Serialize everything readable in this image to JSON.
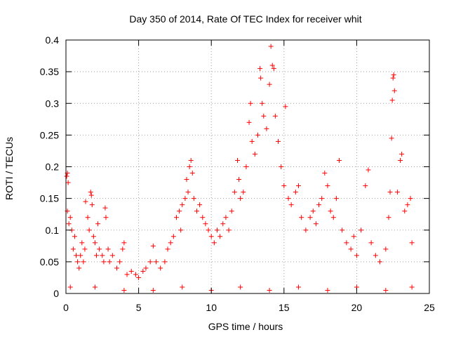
{
  "chart_data": {
    "type": "scatter",
    "title": "Day 350 of 2014, Rate Of TEC Index for receiver whit",
    "xlabel": "GPS time / hours",
    "ylabel": "ROTI / TECUs",
    "xlim": [
      0,
      25
    ],
    "ylim": [
      0,
      0.4
    ],
    "x_ticks": [
      "0",
      "5",
      "10",
      "15",
      "20",
      "25"
    ],
    "y_ticks": [
      "0",
      "0.05",
      "0.1",
      "0.15",
      "0.2",
      "0.25",
      "0.3",
      "0.35",
      "0.4"
    ],
    "grid": true,
    "marker": "+",
    "series": [
      {
        "name": "ROTI",
        "color": "#ff0000",
        "points": [
          [
            0.05,
            0.185
          ],
          [
            0.1,
            0.19
          ],
          [
            0.15,
            0.175
          ],
          [
            0.1,
            0.13
          ],
          [
            0.2,
            0.11
          ],
          [
            0.3,
            0.12
          ],
          [
            0.4,
            0.1
          ],
          [
            0.5,
            0.07
          ],
          [
            0.6,
            0.09
          ],
          [
            0.7,
            0.06
          ],
          [
            0.8,
            0.05
          ],
          [
            0.9,
            0.04
          ],
          [
            1.0,
            0.06
          ],
          [
            1.1,
            0.08
          ],
          [
            1.2,
            0.05
          ],
          [
            1.3,
            0.07
          ],
          [
            1.35,
            0.145
          ],
          [
            1.5,
            0.12
          ],
          [
            1.6,
            0.1
          ],
          [
            1.7,
            0.16
          ],
          [
            1.75,
            0.155
          ],
          [
            1.8,
            0.14
          ],
          [
            1.9,
            0.09
          ],
          [
            2.0,
            0.08
          ],
          [
            2.1,
            0.06
          ],
          [
            2.2,
            0.11
          ],
          [
            2.3,
            0.07
          ],
          [
            2.5,
            0.06
          ],
          [
            2.6,
            0.05
          ],
          [
            2.7,
            0.135
          ],
          [
            2.75,
            0.12
          ],
          [
            2.9,
            0.07
          ],
          [
            3.0,
            0.05
          ],
          [
            3.2,
            0.06
          ],
          [
            3.5,
            0.04
          ],
          [
            3.7,
            0.05
          ],
          [
            3.9,
            0.07
          ],
          [
            4.0,
            0.08
          ],
          [
            4.2,
            0.03
          ],
          [
            4.5,
            0.035
          ],
          [
            4.8,
            0.03
          ],
          [
            5.0,
            0.025
          ],
          [
            5.3,
            0.035
          ],
          [
            5.5,
            0.04
          ],
          [
            5.8,
            0.05
          ],
          [
            6.0,
            0.075
          ],
          [
            6.2,
            0.05
          ],
          [
            6.5,
            0.04
          ],
          [
            6.8,
            0.05
          ],
          [
            7.0,
            0.07
          ],
          [
            7.2,
            0.08
          ],
          [
            7.4,
            0.09
          ],
          [
            7.6,
            0.12
          ],
          [
            7.8,
            0.13
          ],
          [
            7.9,
            0.1
          ],
          [
            8.0,
            0.14
          ],
          [
            8.2,
            0.15
          ],
          [
            8.3,
            0.18
          ],
          [
            8.4,
            0.16
          ],
          [
            8.5,
            0.2
          ],
          [
            8.6,
            0.21
          ],
          [
            8.7,
            0.19
          ],
          [
            8.8,
            0.15
          ],
          [
            9.0,
            0.13
          ],
          [
            9.2,
            0.14
          ],
          [
            9.4,
            0.12
          ],
          [
            9.6,
            0.11
          ],
          [
            9.8,
            0.1
          ],
          [
            10.0,
            0.09
          ],
          [
            10.2,
            0.08
          ],
          [
            10.4,
            0.1
          ],
          [
            10.6,
            0.09
          ],
          [
            10.8,
            0.11
          ],
          [
            11.0,
            0.12
          ],
          [
            11.2,
            0.1
          ],
          [
            11.4,
            0.13
          ],
          [
            11.6,
            0.16
          ],
          [
            11.8,
            0.21
          ],
          [
            11.9,
            0.18
          ],
          [
            12.0,
            0.15
          ],
          [
            12.2,
            0.16
          ],
          [
            12.4,
            0.2
          ],
          [
            12.6,
            0.27
          ],
          [
            12.7,
            0.3
          ],
          [
            12.8,
            0.24
          ],
          [
            13.0,
            0.22
          ],
          [
            13.2,
            0.25
          ],
          [
            13.35,
            0.355
          ],
          [
            13.4,
            0.34
          ],
          [
            13.5,
            0.3
          ],
          [
            13.6,
            0.28
          ],
          [
            13.8,
            0.26
          ],
          [
            14.0,
            0.33
          ],
          [
            14.1,
            0.39
          ],
          [
            14.2,
            0.36
          ],
          [
            14.3,
            0.355
          ],
          [
            14.4,
            0.28
          ],
          [
            14.6,
            0.24
          ],
          [
            14.8,
            0.2
          ],
          [
            15.0,
            0.17
          ],
          [
            15.1,
            0.295
          ],
          [
            15.3,
            0.15
          ],
          [
            15.5,
            0.14
          ],
          [
            15.8,
            0.16
          ],
          [
            16.0,
            0.17
          ],
          [
            16.2,
            0.12
          ],
          [
            16.5,
            0.1
          ],
          [
            16.8,
            0.12
          ],
          [
            17.0,
            0.13
          ],
          [
            17.2,
            0.11
          ],
          [
            17.4,
            0.14
          ],
          [
            17.6,
            0.15
          ],
          [
            17.8,
            0.19
          ],
          [
            18.0,
            0.17
          ],
          [
            18.2,
            0.13
          ],
          [
            18.4,
            0.12
          ],
          [
            18.6,
            0.15
          ],
          [
            18.8,
            0.21
          ],
          [
            19.0,
            0.1
          ],
          [
            19.3,
            0.08
          ],
          [
            19.6,
            0.07
          ],
          [
            19.8,
            0.09
          ],
          [
            20.0,
            0.06
          ],
          [
            20.3,
            0.1
          ],
          [
            20.6,
            0.17
          ],
          [
            20.8,
            0.195
          ],
          [
            21.0,
            0.08
          ],
          [
            21.3,
            0.06
          ],
          [
            21.6,
            0.05
          ],
          [
            22.0,
            0.07
          ],
          [
            22.2,
            0.12
          ],
          [
            22.3,
            0.16
          ],
          [
            22.4,
            0.245
          ],
          [
            22.45,
            0.305
          ],
          [
            22.5,
            0.34
          ],
          [
            22.55,
            0.345
          ],
          [
            22.6,
            0.32
          ],
          [
            22.8,
            0.16
          ],
          [
            23.0,
            0.21
          ],
          [
            23.1,
            0.22
          ],
          [
            23.3,
            0.13
          ],
          [
            23.5,
            0.14
          ],
          [
            23.7,
            0.15
          ],
          [
            23.8,
            0.08
          ],
          [
            0.3,
            0.01
          ],
          [
            2.0,
            0.01
          ],
          [
            4.0,
            0.005
          ],
          [
            6.0,
            0.005
          ],
          [
            8.0,
            0.01
          ],
          [
            10.0,
            0.005
          ],
          [
            12.0,
            0.01
          ],
          [
            14.0,
            0.005
          ],
          [
            16.0,
            0.01
          ],
          [
            18.0,
            0.005
          ],
          [
            20.0,
            0.01
          ],
          [
            22.0,
            0.005
          ],
          [
            23.8,
            0.01
          ]
        ]
      }
    ]
  }
}
